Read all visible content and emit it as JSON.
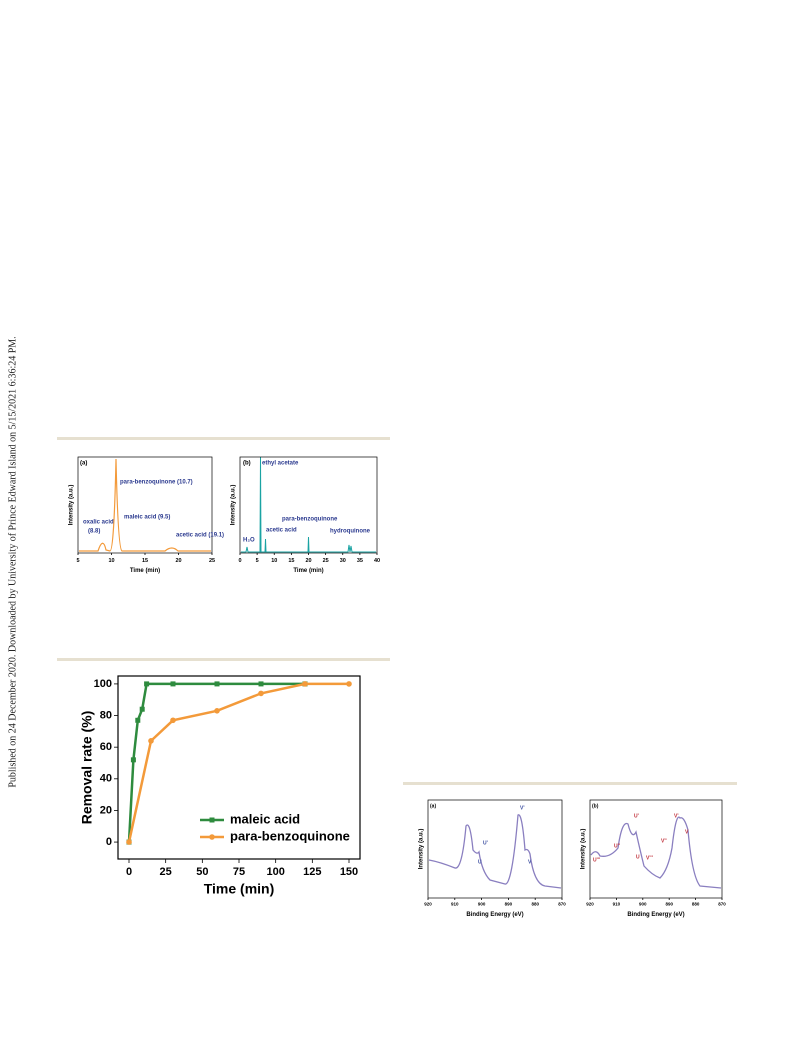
{
  "side_note": "Published on 24 December 2020. Downloaded by University of Prince Edward Island on 5/15/2021 6:36:24 PM.",
  "chart_data": [
    {
      "type": "line",
      "xlabel": "Time (min)",
      "ylabel": "Intensity (a.u.)",
      "xlim": [
        5,
        25
      ],
      "xticks": [
        5,
        10,
        15,
        20,
        25
      ],
      "annotations": [
        "(a)",
        "para-benzoquinone (10.7)",
        "oxalic acid",
        "(8.8)",
        "maleic acid (9.5)",
        "acetic acid (19.1)"
      ]
    },
    {
      "type": "line",
      "xlabel": "Time (min)",
      "ylabel": "Intensity (a.u.)",
      "xlim": [
        0,
        40
      ],
      "xticks": [
        0,
        5,
        10,
        15,
        20,
        25,
        30,
        35,
        40
      ],
      "annotations": [
        "(b)",
        "ethyl acetate",
        "H₂O",
        "acetic acid",
        "para-benzoquinone",
        "hydroquinone"
      ]
    },
    {
      "type": "line",
      "xlabel": "Time (min)",
      "ylabel": "Removal rate (%)",
      "xlim": [
        -7.5,
        157.5
      ],
      "xticks": [
        0,
        25,
        50,
        75,
        100,
        125,
        150
      ],
      "ylim": [
        -10.7,
        105
      ],
      "yticks": [
        0,
        20,
        40,
        60,
        80,
        100
      ],
      "legend": "lower right",
      "series": [
        {
          "name": "maleic acid",
          "color": "#2e8b3e",
          "marker": "square",
          "x": [
            0,
            3,
            6,
            9,
            12,
            30,
            60,
            90,
            120
          ],
          "values": [
            0,
            52,
            77,
            84,
            100,
            100,
            100,
            100,
            100
          ]
        },
        {
          "name": "para-benzoquinone",
          "color": "#f39a3a",
          "marker": "circle",
          "x": [
            0,
            15,
            30,
            60,
            90,
            120,
            150
          ],
          "values": [
            0,
            64,
            77,
            83,
            94,
            100,
            100
          ]
        }
      ]
    },
    {
      "type": "line",
      "xlabel": "Binding Energy (eV)",
      "ylabel": "Intensity (a.u.)",
      "xlim": [
        920,
        870
      ],
      "xticks": [
        920,
        910,
        900,
        890,
        880,
        870
      ],
      "annotations": [
        "(a)",
        "U'",
        "U",
        "V'",
        "V"
      ]
    },
    {
      "type": "line",
      "xlabel": "Binding Energy (eV)",
      "ylabel": "Intensity (a.u.)",
      "xlim": [
        920,
        870
      ],
      "xticks": [
        920,
        910,
        900,
        890,
        880,
        870
      ],
      "annotations": [
        "(b)",
        "U'''",
        "U''",
        "U'",
        "U",
        "V'''",
        "V''",
        "V'",
        "V"
      ]
    }
  ]
}
